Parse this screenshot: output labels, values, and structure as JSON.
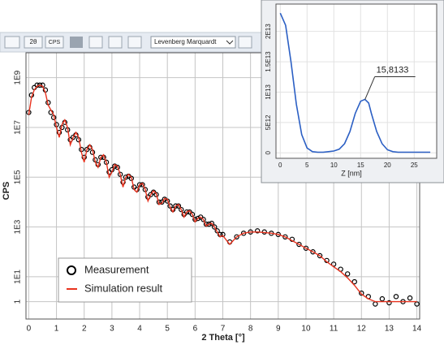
{
  "toolbar": {
    "items": [
      "2θ",
      "CPS",
      "Levenberg Marquardt"
    ]
  },
  "chart_data": [
    {
      "type": "line",
      "x_label": "2 Theta [°]",
      "y_label": "CPS",
      "yscale": "log",
      "grid": true,
      "legend": "lower left",
      "x": [
        0,
        0.1,
        0.2,
        0.3,
        0.4,
        0.5,
        0.6,
        0.7,
        0.8,
        0.9,
        1.0,
        1.1,
        1.2,
        1.3,
        1.4,
        1.5,
        1.6,
        1.7,
        1.8,
        1.9,
        2.0,
        2.1,
        2.2,
        2.3,
        2.4,
        2.5,
        2.6,
        2.7,
        2.8,
        2.9,
        3.0,
        3.1,
        3.2,
        3.3,
        3.4,
        3.5,
        3.6,
        3.7,
        3.8,
        3.9,
        4.0,
        4.1,
        4.2,
        4.3,
        4.4,
        4.5,
        4.6,
        4.7,
        4.8,
        4.9,
        5.0,
        5.1,
        5.2,
        5.3,
        5.4,
        5.5,
        5.6,
        5.7,
        5.8,
        5.9,
        6.0,
        6.1,
        6.2,
        6.3,
        6.4,
        6.5,
        6.6,
        6.7,
        6.8,
        6.9,
        7.0,
        7.25,
        7.5,
        7.75,
        8.0,
        8.25,
        8.5,
        8.75,
        9.0,
        9.25,
        9.5,
        9.75,
        10.0,
        10.25,
        10.5,
        10.75,
        11.0,
        11.25,
        11.5,
        11.75,
        12.0,
        12.25,
        12.5,
        12.75,
        13.0,
        13.25,
        13.5,
        13.75,
        14.0
      ],
      "series": [
        {
          "name": "Measurement",
          "color": "#000000",
          "mode": "markers",
          "values": [
            40000000.0,
            200000000.0,
            400000000.0,
            500000000.0,
            500000000.0,
            500000000.0,
            320000000.0,
            100000000.0,
            40000000.0,
            25000000.0,
            13000000.0,
            6300000.0,
            10000000.0,
            16000000.0,
            8000000.0,
            3200000.0,
            4000000.0,
            5000000.0,
            3200000.0,
            1300000.0,
            630000.0,
            1300000.0,
            1600000.0,
            1000000.0,
            500000.0,
            320000.0,
            630000.0,
            630000.0,
            400000.0,
            160000.0,
            200000.0,
            280000.0,
            250000.0,
            130000.0,
            63000.0,
            100000.0,
            110000.0,
            90000.0,
            40000.0,
            32000.0,
            50000.0,
            50000.0,
            32000.0,
            16000.0,
            20000.0,
            25000.0,
            20000.0,
            10000.0,
            10000.0,
            13000.0,
            11000.0,
            7000.0,
            5000.0,
            7000.0,
            7000.0,
            5000.0,
            3200.0,
            4000.0,
            4000.0,
            3200.0,
            2000.0,
            2200.0,
            2500.0,
            2000.0,
            1300.0,
            1300.0,
            1400.0,
            1000.0,
            700,
            500,
            500,
            250,
            400,
            560,
            630,
            700,
            630,
            560,
            500,
            400,
            320,
            200,
            140,
            100,
            70,
            45,
            32,
            20,
            13,
            6.3,
            2.2,
            1.6,
            0.8,
            1.3,
            0.9,
            1.6,
            1,
            1.4,
            0.8
          ]
        },
        {
          "name": "Simulation result",
          "color": "#e8321e",
          "mode": "lines",
          "values": [
            32000000.0,
            160000000.0,
            320000000.0,
            450000000.0,
            500000000.0,
            450000000.0,
            250000000.0,
            80000000.0,
            50000000.0,
            32000000.0,
            10000000.0,
            4000000.0,
            13000000.0,
            20000000.0,
            10000000.0,
            2000000.0,
            4000000.0,
            6300000.0,
            4000000.0,
            1000000.0,
            400000.0,
            1300000.0,
            2000000.0,
            1300000.0,
            400000.0,
            250000.0,
            630000.0,
            800000.0,
            400000.0,
            100000.0,
            160000.0,
            320000.0,
            280000.0,
            130000.0,
            40000.0,
            100000.0,
            130000.0,
            100000.0,
            32000.0,
            25000.0,
            50000.0,
            56000.0,
            32000.0,
            11000.0,
            20000.0,
            28000.0,
            22000.0,
            8000.0,
            9000.0,
            14000.0,
            13000.0,
            6300.0,
            4000.0,
            7000.0,
            8000.0,
            5000.0,
            2500.0,
            4000.0,
            4500.0,
            3200.0,
            1600.0,
            2200.0,
            2500.0,
            2000.0,
            1100.0,
            1300.0,
            1400.0,
            1000.0,
            630,
            400,
            450,
            200,
            400,
            560,
            630,
            630,
            600,
            560,
            500,
            400,
            280,
            200,
            140,
            100,
            70,
            40,
            25,
            16,
            9,
            4.5,
            2,
            1.3,
            1,
            1,
            1,
            1,
            1,
            1,
            1
          ]
        }
      ],
      "xlim": [
        -0.1,
        14.1
      ],
      "ylim": [
        0.2,
        10000000000.0
      ],
      "xticks": [
        0,
        1,
        2,
        3,
        4,
        5,
        6,
        7,
        8,
        9,
        10,
        11,
        12,
        13,
        14
      ],
      "yticks": [
        1,
        {
          "value": 10,
          "label": "1E1"
        },
        {
          "value": 1000,
          "label": "1E3"
        },
        {
          "value": 100000,
          "label": "1E5"
        },
        {
          "value": 10000000,
          "label": "1E7"
        },
        {
          "value": 1000000000,
          "label": "1E9"
        }
      ]
    },
    {
      "type": "line",
      "x_label": "Z [nm]",
      "grid": true,
      "color": "#2b5fc4",
      "x": [
        0,
        1,
        2,
        3,
        4,
        5,
        6,
        7,
        8,
        9,
        10,
        11,
        12,
        13,
        14,
        15,
        15.8,
        16.5,
        17,
        18,
        19,
        20,
        21,
        22,
        24,
        26,
        28
      ],
      "values": [
        23000000000000.0,
        21000000000000.0,
        15000000000000.0,
        8000000000000.0,
        3000000000000.0,
        800000000000.0,
        200000000000.0,
        100000000000.0,
        100000000000.0,
        200000000000.0,
        300000000000.0,
        600000000000.0,
        1500000000000.0,
        3500000000000.0,
        6500000000000.0,
        8500000000000.0,
        8800000000000.0,
        8200000000000.0,
        6500000000000.0,
        3500000000000.0,
        1500000000000.0,
        500000000000.0,
        200000000000.0,
        100000000000.0,
        100000000000.0,
        100000000000.0,
        100000000000.0
      ],
      "xlim": [
        -0.8,
        29.2
      ],
      "ylim": [
        -900000000000.0,
        24500000000000.0
      ],
      "xticks": [
        0,
        5,
        10,
        15,
        20,
        25
      ],
      "yticks": [
        0,
        {
          "value": 5000000000000.0,
          "label": "5E12"
        },
        {
          "value": 10000000000000.0,
          "label": "1E13"
        },
        {
          "value": 15000000000000.0,
          "label": "1.5E13"
        },
        {
          "value": 20000000000000.0,
          "label": "2E13"
        }
      ],
      "annotation": {
        "label": "15,8133",
        "x": 15.8133
      }
    }
  ]
}
